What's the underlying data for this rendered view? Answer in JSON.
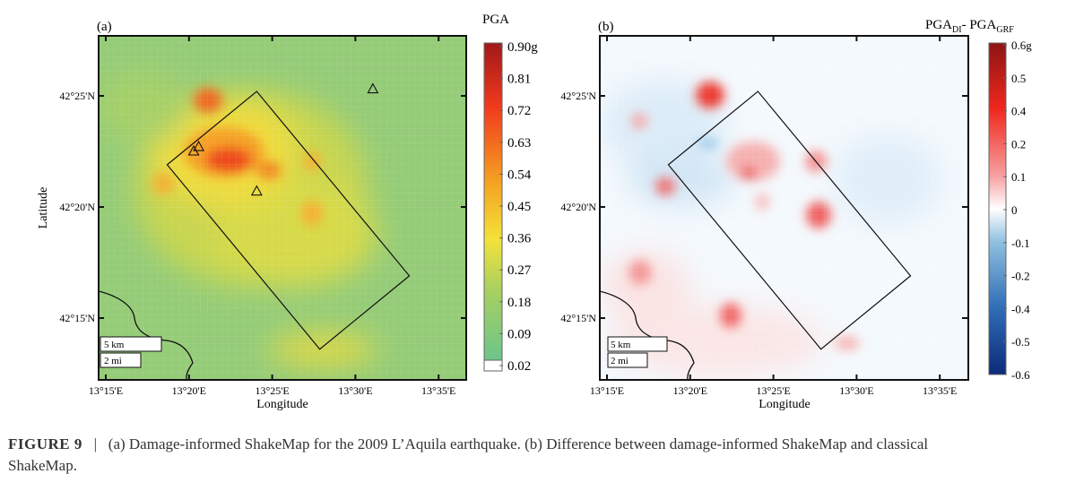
{
  "figure": {
    "caption_label": "FIGURE  9",
    "caption_sep": "|",
    "caption_line1": "(a) Damage-informed ShakeMap for the 2009 L’Aquila earthquake. (b) Difference between damage-informed ShakeMap and classical",
    "caption_line2": "ShakeMap."
  },
  "chart_data": [
    {
      "type": "heatmap",
      "panel_label": "(a)",
      "xlabel": "Longitude",
      "ylabel": "Latitude",
      "xticks": [
        "13°15'E",
        "13°20'E",
        "13°25'E",
        "13°30'E",
        "13°35'E"
      ],
      "yticks": [
        "42°25'N",
        "42°20'N",
        "42°15'N"
      ],
      "colorbar_title": "PGA",
      "colorbar_ticks": [
        "0.90g",
        "0.81",
        "0.72",
        "0.63",
        "0.54",
        "0.45",
        "0.36",
        "0.27",
        "0.18",
        "0.09",
        "0.02"
      ],
      "colorbar_range": [
        0.02,
        0.9
      ],
      "colors": [
        "#ffffff",
        "#6cc58a",
        "#a8d060",
        "#f3e23a",
        "#f5a623",
        "#f03a1c",
        "#a0181a"
      ],
      "stations_lon_lat_minutes": [
        [
          31.1,
          25.3
        ],
        [
          20.3,
          22.5
        ],
        [
          20.6,
          22.7
        ],
        [
          24.1,
          20.7
        ]
      ],
      "fault_corners_lon_lat_minutes": [
        [
          18.7,
          21.9
        ],
        [
          24.1,
          25.2
        ],
        [
          33.3,
          16.9
        ],
        [
          27.9,
          13.6
        ]
      ],
      "scale_bars": [
        "5 km",
        "2 mi"
      ]
    },
    {
      "type": "heatmap",
      "panel_label": "(b)",
      "xlabel": "Longitude",
      "ylabel": "",
      "xticks": [
        "13°15'E",
        "13°20'E",
        "13°25'E",
        "13°30'E",
        "13°35'E"
      ],
      "yticks": [
        "42°25'N",
        "42°20'N",
        "42°15'N"
      ],
      "colorbar_title_main": "PGA",
      "colorbar_title_sub1": "DI",
      "colorbar_title_mid": "- PGA",
      "colorbar_title_sub2": "GRF",
      "colorbar_ticks": [
        "0.6g",
        "0.5",
        "0.4",
        "0.2",
        "0.1",
        "0",
        "-0.1",
        "-0.2",
        "-0.4",
        "-0.5",
        "-0.6"
      ],
      "colorbar_range": [
        -0.6,
        0.6
      ],
      "colors": [
        "#0d2a7a",
        "#2f6db5",
        "#8fc0e0",
        "#ffffff",
        "#f7a0a0",
        "#f0281e",
        "#8c1414"
      ],
      "fault_corners_lon_lat_minutes": [
        [
          18.7,
          21.9
        ],
        [
          24.1,
          25.2
        ],
        [
          33.3,
          16.9
        ],
        [
          27.9,
          13.6
        ]
      ],
      "scale_bars": [
        "5 km",
        "2 mi"
      ]
    }
  ]
}
